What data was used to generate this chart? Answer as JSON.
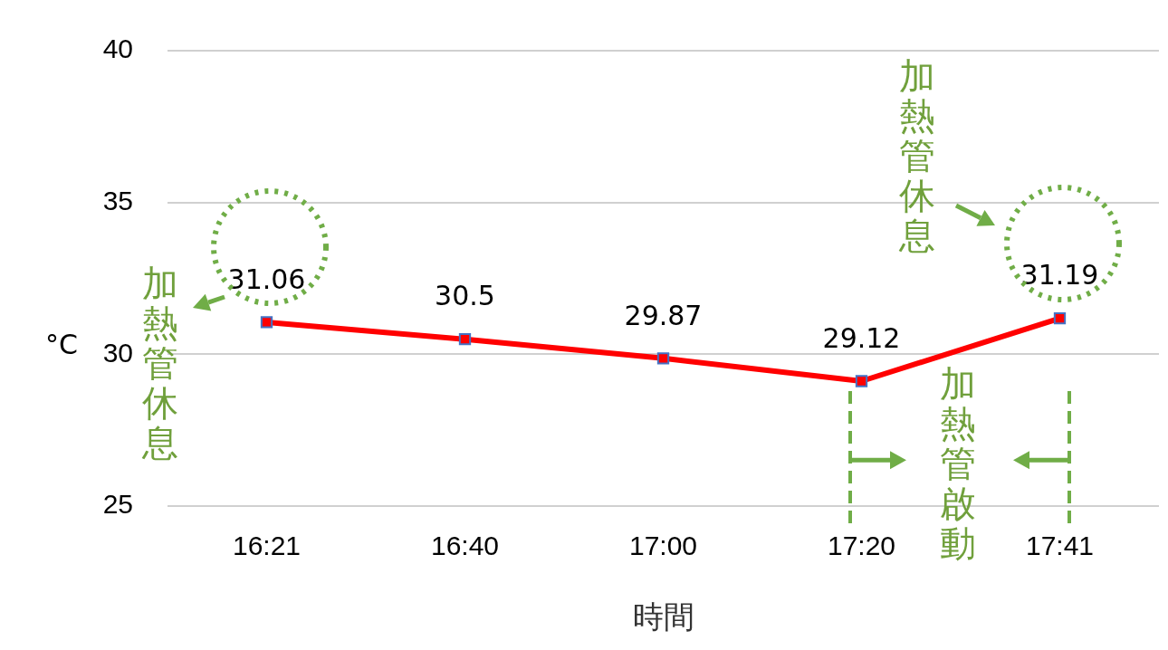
{
  "chart_data": {
    "type": "line",
    "xlabel": "時間",
    "ylabel": "°C",
    "categories": [
      "16:21",
      "16:40",
      "17:00",
      "17:20",
      "17:41"
    ],
    "series": [
      {
        "color": "#ff0000",
        "values": [
          31.06,
          30.5,
          29.87,
          29.12,
          31.19
        ]
      }
    ],
    "ylim": [
      25,
      40
    ],
    "yticks": [
      25,
      30,
      35,
      40
    ],
    "grid": "y",
    "marker": "square",
    "line_style": "solid",
    "legend": false,
    "data_labels": true,
    "annotations": [
      {
        "text": "加熱管休息",
        "x": "16:21",
        "y": 31.06
      },
      "加熱管休息",
      "加熱管啟動"
    ]
  }
}
